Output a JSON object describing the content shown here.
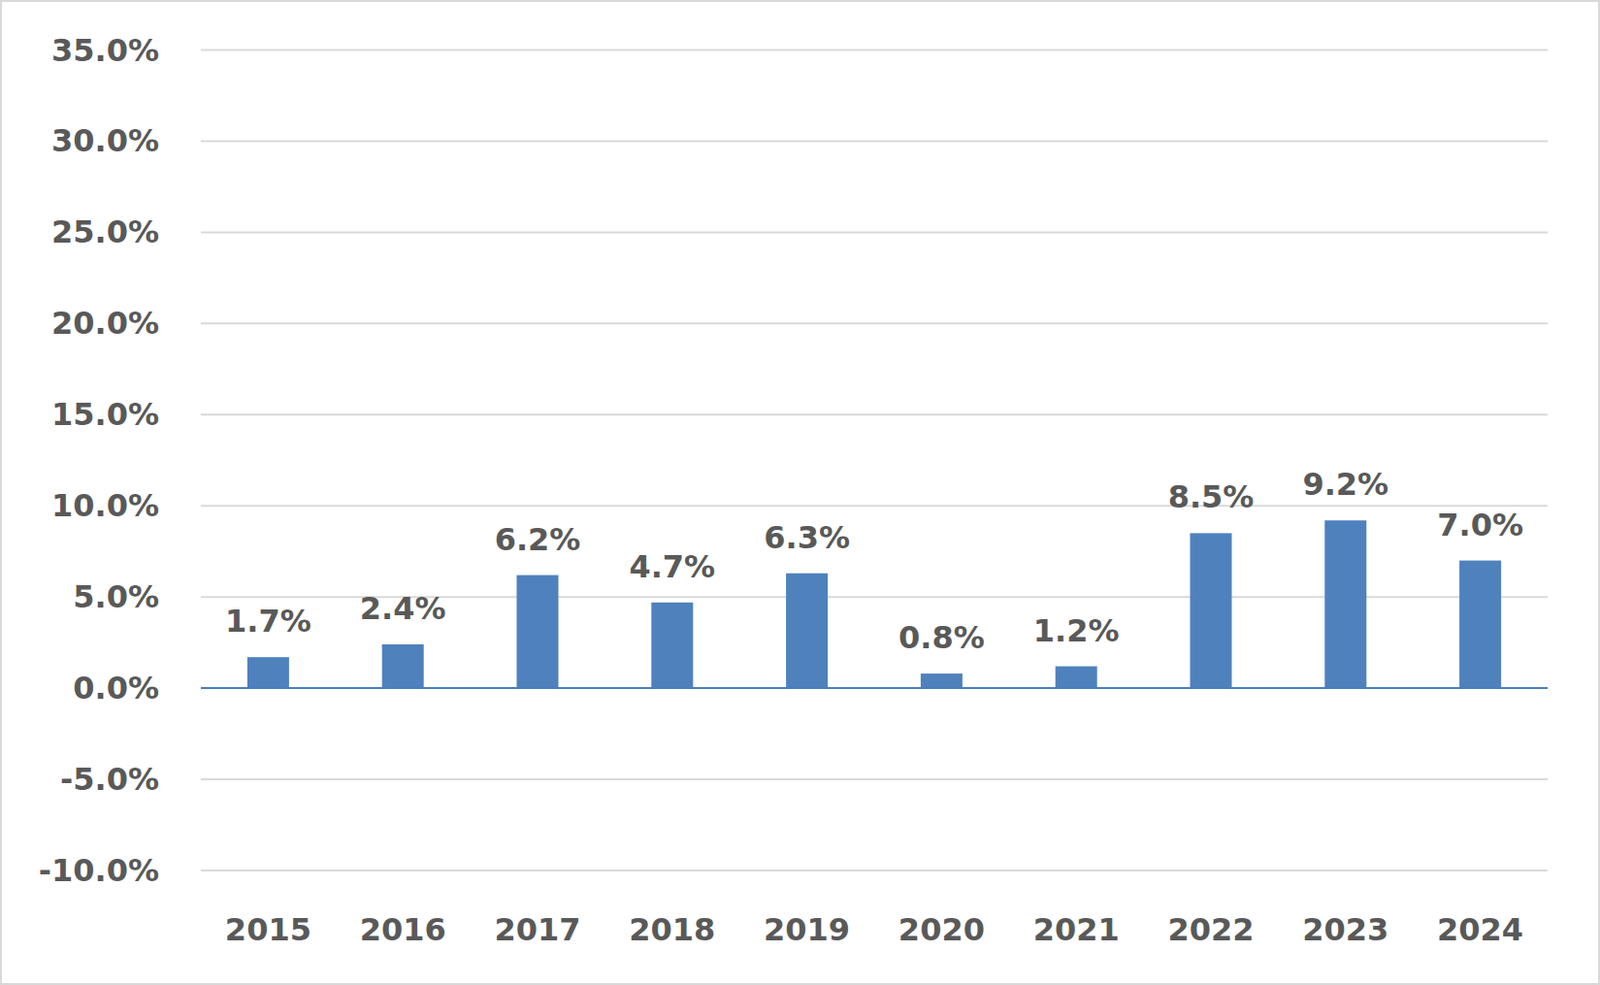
{
  "chart_data": {
    "type": "bar",
    "categories": [
      "2015",
      "2016",
      "2017",
      "2018",
      "2019",
      "2020",
      "2021",
      "2022",
      "2023",
      "2024"
    ],
    "values": [
      1.7,
      2.4,
      6.2,
      4.7,
      6.3,
      0.8,
      1.2,
      8.5,
      9.2,
      7.0
    ],
    "value_labels": [
      "1.7%",
      "2.4%",
      "6.2%",
      "4.7%",
      "6.3%",
      "0.8%",
      "1.2%",
      "8.5%",
      "9.2%",
      "7.0%"
    ],
    "color": "#4f81bd",
    "ylim": [
      -10,
      35
    ],
    "yticks": [
      {
        "value": -10,
        "label": "-10.0%"
      },
      {
        "value": -5,
        "label": "-5.0%"
      },
      {
        "value": 0,
        "label": "0.0%"
      },
      {
        "value": 5,
        "label": "5.0%"
      },
      {
        "value": 10,
        "label": "10.0%"
      },
      {
        "value": 15,
        "label": "15.0%"
      },
      {
        "value": 20,
        "label": "20.0%"
      },
      {
        "value": 25,
        "label": "25.0%"
      },
      {
        "value": 30,
        "label": "30.0%"
      },
      {
        "value": 35,
        "label": "35.0%"
      }
    ],
    "grid": true,
    "data_labels": true
  }
}
